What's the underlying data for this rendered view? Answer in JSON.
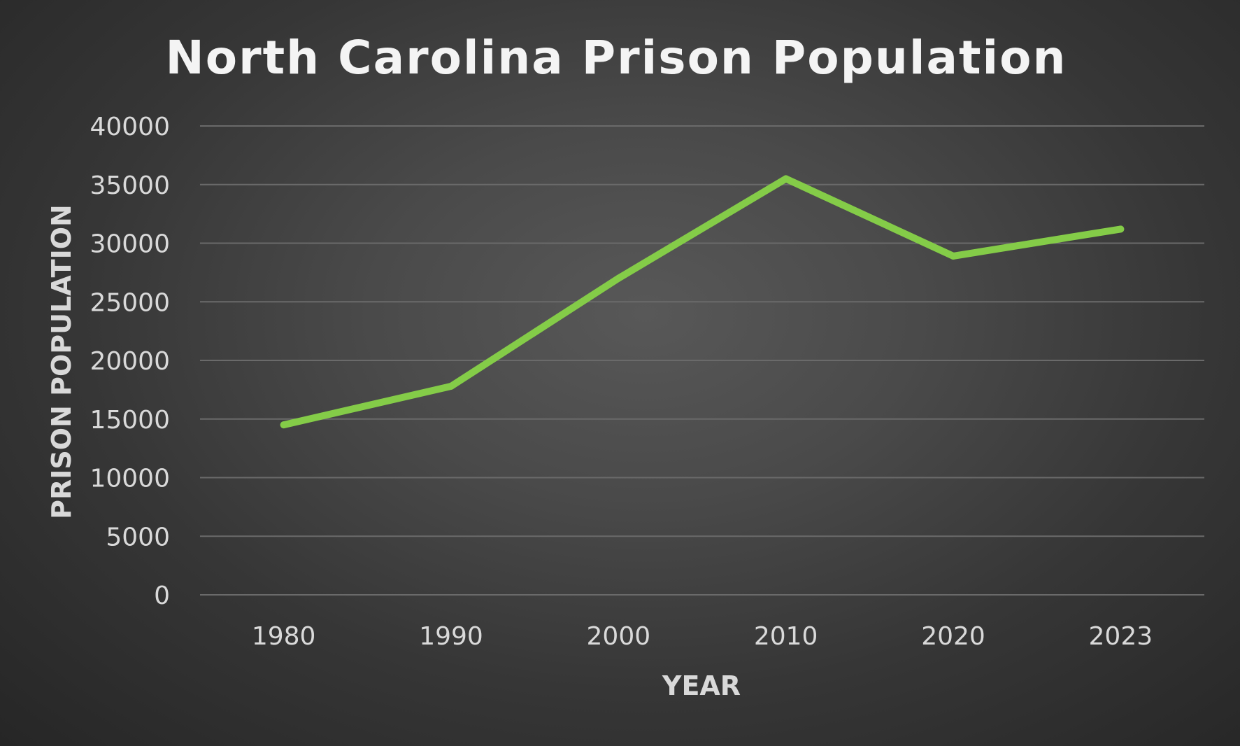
{
  "chart_data": {
    "type": "line",
    "title": "North Carolina Prison Population",
    "xlabel": "YEAR",
    "ylabel": "PRISON POPULATION",
    "categories": [
      "1980",
      "1990",
      "2000",
      "2010",
      "2020",
      "2023"
    ],
    "series": [
      {
        "values": [
          14500,
          17800,
          27000,
          35500,
          28900,
          31200
        ],
        "color": "#84cc48"
      }
    ],
    "ylim": [
      0,
      40000
    ],
    "yticks": [
      0,
      5000,
      10000,
      15000,
      20000,
      25000,
      30000,
      35000,
      40000
    ],
    "grid": true,
    "legend": "none"
  }
}
